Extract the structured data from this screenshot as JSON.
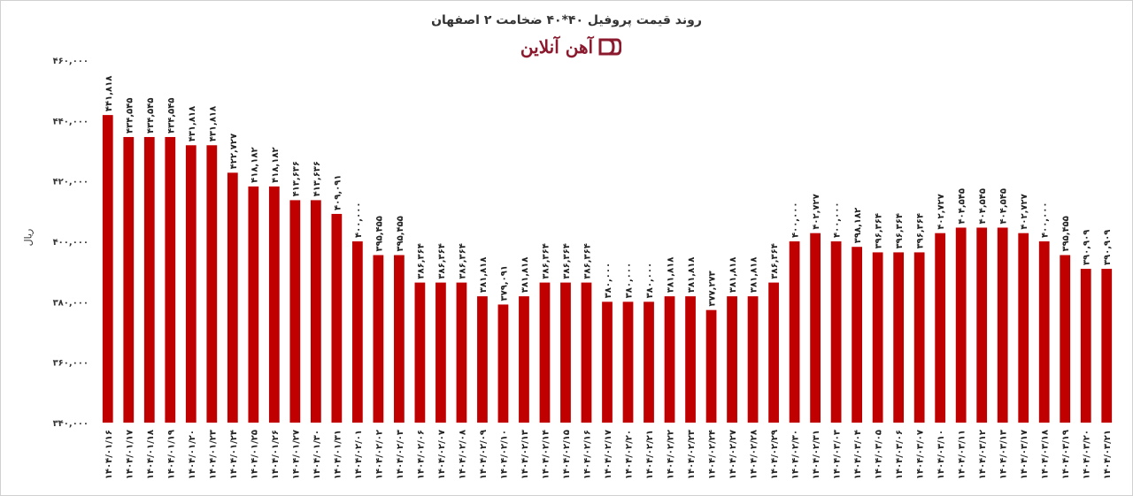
{
  "chart_data": {
    "type": "bar",
    "title": "روند قیمت پروفیل ۴۰*۴۰ ضخامت ۲ اصفهان",
    "xlabel": "",
    "ylabel": "ریال",
    "ylim": [
      340000,
      460000
    ],
    "yticks": [
      "۳۴۰,۰۰۰",
      "۳۶۰,۰۰۰",
      "۳۸۰,۰۰۰",
      "۴۰۰,۰۰۰",
      "۴۲۰,۰۰۰",
      "۴۴۰,۰۰۰",
      "۴۶۰,۰۰۰"
    ],
    "ytick_values": [
      340000,
      360000,
      380000,
      400000,
      420000,
      440000,
      460000
    ],
    "bar_color": "#c00000",
    "grid": false,
    "categories": [
      "۱۴۰۴/۰۱/۱۶",
      "۱۴۰۴/۰۱/۱۷",
      "۱۴۰۴/۰۱/۱۸",
      "۱۴۰۴/۰۱/۱۹",
      "۱۴۰۴/۰۱/۲۰",
      "۱۴۰۴/۰۱/۲۳",
      "۱۴۰۴/۰۱/۲۴",
      "۱۴۰۴/۰۱/۲۵",
      "۱۴۰۴/۰۱/۲۶",
      "۱۴۰۴/۰۱/۲۷",
      "۱۴۰۴/۰۱/۳۰",
      "۱۴۰۴/۰۱/۳۱",
      "۱۴۰۴/۰۲/۰۱",
      "۱۴۰۴/۰۲/۰۲",
      "۱۴۰۴/۰۲/۰۳",
      "۱۴۰۴/۰۲/۰۶",
      "۱۴۰۴/۰۲/۰۷",
      "۱۴۰۴/۰۲/۰۸",
      "۱۴۰۴/۰۲/۰۹",
      "۱۴۰۴/۰۲/۱۰",
      "۱۴۰۴/۰۲/۱۳",
      "۱۴۰۴/۰۲/۱۴",
      "۱۴۰۴/۰۲/۱۵",
      "۱۴۰۴/۰۲/۱۶",
      "۱۴۰۴/۰۲/۱۷",
      "۱۴۰۴/۰۲/۲۰",
      "۱۴۰۴/۰۲/۲۱",
      "۱۴۰۴/۰۲/۲۲",
      "۱۴۰۴/۰۲/۲۳",
      "۱۴۰۴/۰۲/۲۴",
      "۱۴۰۴/۰۲/۲۷",
      "۱۴۰۴/۰۲/۲۸",
      "۱۴۰۴/۰۲/۲۹",
      "۱۴۰۴/۰۲/۳۰",
      "۱۴۰۴/۰۲/۳۱",
      "۱۴۰۴/۰۳/۰۳",
      "۱۴۰۴/۰۳/۰۴",
      "۱۴۰۴/۰۳/۰۵",
      "۱۴۰۴/۰۳/۰۶",
      "۱۴۰۴/۰۳/۰۷",
      "۱۴۰۴/۰۳/۱۰",
      "۱۴۰۴/۰۳/۱۱",
      "۱۴۰۴/۰۳/۱۲",
      "۱۴۰۴/۰۳/۱۳",
      "۱۴۰۴/۰۳/۱۷",
      "۱۴۰۴/۰۳/۱۸",
      "۱۴۰۴/۰۳/۱۹",
      "۱۴۰۴/۰۳/۲۰",
      "۱۴۰۴/۰۳/۲۱"
    ],
    "values": [
      441818,
      434545,
      434545,
      434545,
      431818,
      431818,
      422727,
      418182,
      418182,
      413636,
      413636,
      409091,
      400000,
      395455,
      395455,
      386364,
      386364,
      386364,
      381818,
      379091,
      381818,
      386364,
      386364,
      386364,
      380000,
      380000,
      380000,
      381818,
      381818,
      377273,
      381818,
      381818,
      386364,
      400000,
      402727,
      400000,
      398182,
      396364,
      396364,
      396364,
      402727,
      404545,
      404545,
      404545,
      402727,
      400000,
      395455,
      390909,
      390909
    ],
    "data_labels": [
      "۴۴۱,۸۱۸",
      "۴۳۴,۵۴۵",
      "۴۳۴,۵۴۵",
      "۴۳۴,۵۴۵",
      "۴۳۱,۸۱۸",
      "۴۳۱,۸۱۸",
      "۴۲۲,۷۲۷",
      "۴۱۸,۱۸۲",
      "۴۱۸,۱۸۲",
      "۴۱۳,۶۳۶",
      "۴۱۳,۶۳۶",
      "۴۰۹,۰۹۱",
      "۴۰۰,۰۰۰",
      "۳۹۵,۴۵۵",
      "۳۹۵,۴۵۵",
      "۳۸۶,۳۶۴",
      "۳۸۶,۳۶۴",
      "۳۸۶,۳۶۴",
      "۳۸۱,۸۱۸",
      "۳۷۹,۰۹۱",
      "۳۸۱,۸۱۸",
      "۳۸۶,۳۶۴",
      "۳۸۶,۳۶۴",
      "۳۸۶,۳۶۴",
      "۳۸۰,۰۰۰",
      "۳۸۰,۰۰۰",
      "۳۸۰,۰۰۰",
      "۳۸۱,۸۱۸",
      "۳۸۱,۸۱۸",
      "۳۷۷,۲۷۳",
      "۳۸۱,۸۱۸",
      "۳۸۱,۸۱۸",
      "۳۸۶,۳۶۴",
      "۴۰۰,۰۰۰",
      "۴۰۲,۷۲۷",
      "۴۰۰,۰۰۰",
      "۳۹۸,۱۸۲",
      "۳۹۶,۳۶۴",
      "۳۹۶,۳۶۴",
      "۳۹۶,۳۶۴",
      "۴۰۲,۷۲۷",
      "۴۰۴,۵۴۵",
      "۴۰۴,۵۴۵",
      "۴۰۴,۵۴۵",
      "۴۰۲,۷۲۷",
      "۴۰۰,۰۰۰",
      "۳۹۵,۴۵۵",
      "۳۹۰,۹۰۹",
      "۳۹۰,۹۰۹"
    ]
  },
  "logo": {
    "text": "آهن آنلاین",
    "color": "#8b1a2e",
    "icon": "ahan-online-logo-icon"
  }
}
